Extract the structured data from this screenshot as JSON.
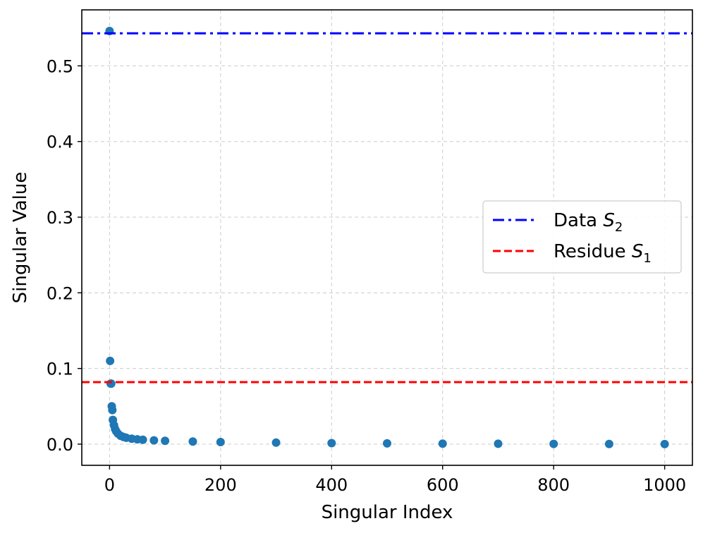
{
  "chart_data": {
    "type": "scatter",
    "title": "",
    "xlabel": "Singular Index",
    "ylabel": "Singular Value",
    "xlim": [
      -50,
      1050
    ],
    "ylim": [
      -0.028,
      0.574
    ],
    "xticks": [
      0,
      200,
      400,
      600,
      800,
      1000
    ],
    "yticks": [
      0.0,
      0.1,
      0.2,
      0.3,
      0.4,
      0.5
    ],
    "xtick_labels": [
      "0",
      "200",
      "400",
      "600",
      "800",
      "1000"
    ],
    "ytick_labels": [
      "0.0",
      "0.1",
      "0.2",
      "0.3",
      "0.4",
      "0.5"
    ],
    "grid": true,
    "legend_position": "center-right",
    "series": [
      {
        "kind": "points",
        "color": "#1f77b4",
        "points": [
          [
            0,
            0.546
          ],
          [
            1,
            0.11
          ],
          [
            2,
            0.08
          ],
          [
            3,
            0.08
          ],
          [
            4,
            0.05
          ],
          [
            5,
            0.045
          ],
          [
            6,
            0.032
          ],
          [
            8,
            0.025
          ],
          [
            10,
            0.02
          ],
          [
            12,
            0.017
          ],
          [
            15,
            0.014
          ],
          [
            20,
            0.011
          ],
          [
            25,
            0.0095
          ],
          [
            30,
            0.0085
          ],
          [
            40,
            0.0072
          ],
          [
            50,
            0.0064
          ],
          [
            60,
            0.0058
          ],
          [
            80,
            0.005
          ],
          [
            100,
            0.0044
          ],
          [
            150,
            0.0035
          ],
          [
            200,
            0.0028
          ],
          [
            300,
            0.002
          ],
          [
            400,
            0.0014
          ],
          [
            500,
            0.001
          ],
          [
            600,
            0.0007
          ],
          [
            700,
            0.0005
          ],
          [
            800,
            0.0003
          ],
          [
            900,
            0.0002
          ],
          [
            1000,
            0.0001
          ]
        ]
      },
      {
        "kind": "hline",
        "name": "Data S₂",
        "legend_main": "Data ",
        "legend_var": "S",
        "legend_sub": "2",
        "value": 0.543,
        "color": "#0000ff",
        "style": "dashdot"
      },
      {
        "kind": "hline",
        "name": "Residue S₁",
        "legend_main": "Residue ",
        "legend_var": "S",
        "legend_sub": "1",
        "value": 0.082,
        "color": "#ff0000",
        "style": "dashed"
      }
    ]
  }
}
